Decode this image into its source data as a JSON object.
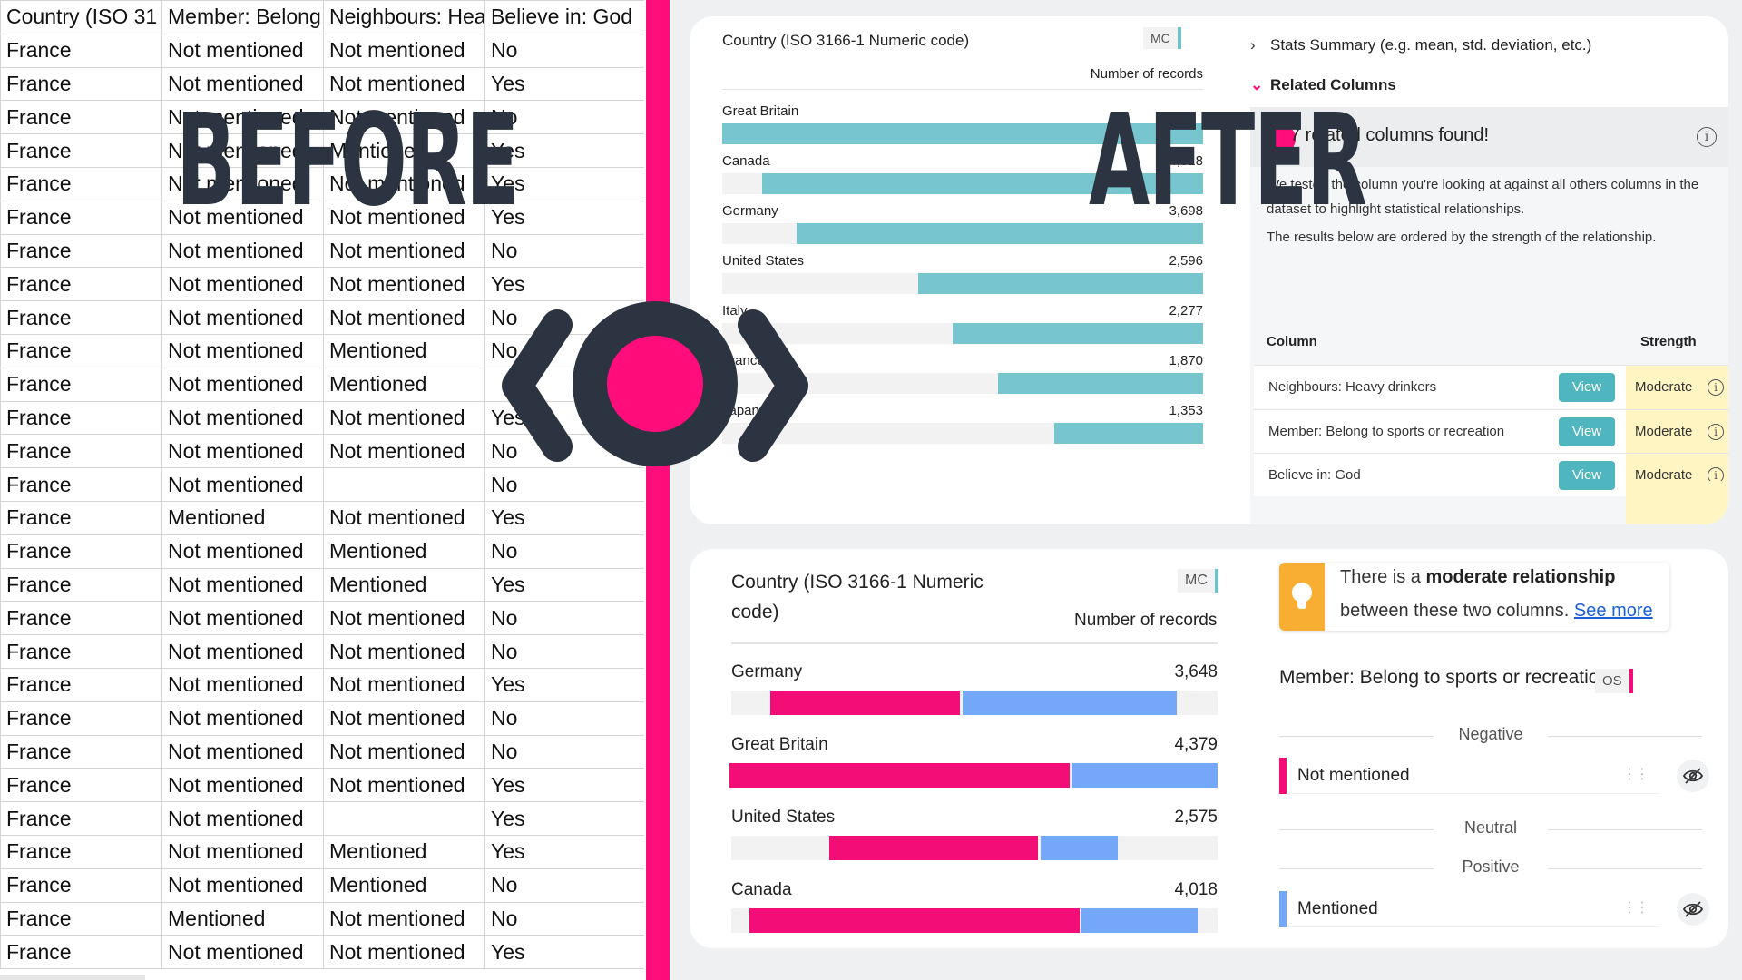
{
  "spreadsheet": {
    "headers": [
      "Country (ISO 31",
      "Member: Belong",
      "Neighbours: Hea",
      "Believe in: God"
    ],
    "rows": [
      [
        "France",
        "Not mentioned",
        "Not mentioned",
        "No"
      ],
      [
        "France",
        "Not mentioned",
        "Not mentioned",
        "Yes"
      ],
      [
        "France",
        "Not mentioned",
        "Not mentioned",
        "No"
      ],
      [
        "France",
        "Not mentioned",
        "Mentioned",
        "Yes"
      ],
      [
        "France",
        "Not mentioned",
        "Not mentioned",
        "Yes"
      ],
      [
        "France",
        "Not mentioned",
        "Not mentioned",
        "Yes"
      ],
      [
        "France",
        "Not mentioned",
        "Not mentioned",
        "No"
      ],
      [
        "France",
        "Not mentioned",
        "Not mentioned",
        "Yes"
      ],
      [
        "France",
        "Not mentioned",
        "Not mentioned",
        "No"
      ],
      [
        "France",
        "Not mentioned",
        "Mentioned",
        "No"
      ],
      [
        "France",
        "Not mentioned",
        "Mentioned",
        ""
      ],
      [
        "France",
        "Not mentioned",
        "Not mentioned",
        "Yes"
      ],
      [
        "France",
        "Not mentioned",
        "Not mentioned",
        "No"
      ],
      [
        "France",
        "Not mentioned",
        "",
        "No"
      ],
      [
        "France",
        "Mentioned",
        "Not mentioned",
        "Yes"
      ],
      [
        "France",
        "Not mentioned",
        "Mentioned",
        "No"
      ],
      [
        "France",
        "Not mentioned",
        "Mentioned",
        "Yes"
      ],
      [
        "France",
        "Not mentioned",
        "Not mentioned",
        "No"
      ],
      [
        "France",
        "Not mentioned",
        "Not mentioned",
        "No"
      ],
      [
        "France",
        "Not mentioned",
        "Not mentioned",
        "Yes"
      ],
      [
        "France",
        "Not mentioned",
        "Not mentioned",
        "No"
      ],
      [
        "France",
        "Not mentioned",
        "Not mentioned",
        "No"
      ],
      [
        "France",
        "Not mentioned",
        "Not mentioned",
        "Yes"
      ],
      [
        "France",
        "Not mentioned",
        "",
        "Yes"
      ],
      [
        "France",
        "Not mentioned",
        "Mentioned",
        "Yes"
      ],
      [
        "France",
        "Not mentioned",
        "Mentioned",
        "No"
      ],
      [
        "France",
        "Mentioned",
        "Not mentioned",
        "No"
      ],
      [
        "France",
        "Not mentioned",
        "Not mentioned",
        "Yes"
      ]
    ]
  },
  "overlay": {
    "before": "BEFORE",
    "after": "AFTER"
  },
  "colors": {
    "accent": "#ff0d7b",
    "teal": "#77c5cf",
    "negative": "#f20d77",
    "positive": "#74a7f7",
    "dark": "#2b3440"
  },
  "top_chart": {
    "title": "Country (ISO 3166-1 Numeric code)",
    "badge": "MC",
    "measure": "Number of records",
    "max": 4379,
    "rows": [
      {
        "name": "Great Britain",
        "value": 4379,
        "label": ""
      },
      {
        "name": "Canada",
        "value": 4018,
        "label": "4,018"
      },
      {
        "name": "Germany",
        "value": 3698,
        "label": "3,698"
      },
      {
        "name": "United States",
        "value": 2596,
        "label": "2,596"
      },
      {
        "name": "Italy",
        "value": 2277,
        "label": "2,277"
      },
      {
        "name": "France",
        "value": 1870,
        "label": "1,870"
      },
      {
        "name": "Japan",
        "value": 1353,
        "label": "1,353"
      }
    ]
  },
  "side_panel": {
    "stats_summary": "Stats Summary (e.g. mean, std. deviation, etc.)",
    "related_columns": "Related Columns",
    "found_text": "7 related columns found!",
    "desc1_line1": "We tested the column you're looking at against all others columns in the",
    "desc1_line2": "dataset to highlight statistical relationships.",
    "desc2": "The results below are ordered by the strength of the relationship.",
    "col_header": "Column",
    "strength_header": "Strength",
    "view_label": "View",
    "rows": [
      {
        "column": "Neighbours: Heavy drinkers",
        "strength": "Moderate"
      },
      {
        "column": "Member: Belong to sports or recreation",
        "strength": "Moderate"
      },
      {
        "column": "Believe in: God",
        "strength": "Moderate"
      }
    ]
  },
  "bottom_chart": {
    "title": "Country (ISO 3166-1 Numeric code)",
    "badge": "MC",
    "measure": "Number of records",
    "rows": [
      {
        "name": "Germany",
        "label": "3,648",
        "value": 3648,
        "negative_share": 0.47,
        "positive_share": 0.53
      },
      {
        "name": "Great Britain",
        "label": "4,379",
        "value": 4379,
        "negative_share": 0.7,
        "positive_share": 0.3
      },
      {
        "name": "United States",
        "label": "2,575",
        "value": 2575,
        "negative_share": 0.73,
        "positive_share": 0.27
      },
      {
        "name": "Canada",
        "label": "4,018",
        "value": 4018,
        "negative_share": 0.74,
        "positive_share": 0.26
      }
    ]
  },
  "relationship": {
    "line1_pre": "There is a ",
    "line1_bold": "moderate relationship",
    "line2_pre": "between these two columns. ",
    "see_more": "See more",
    "column_title": "Member: Belong to sports or recreation",
    "badge": "OS",
    "groups": {
      "negative": "Negative",
      "neutral": "Neutral",
      "positive": "Positive"
    },
    "categories": {
      "negative": "Not mentioned",
      "positive": "Mentioned"
    }
  }
}
